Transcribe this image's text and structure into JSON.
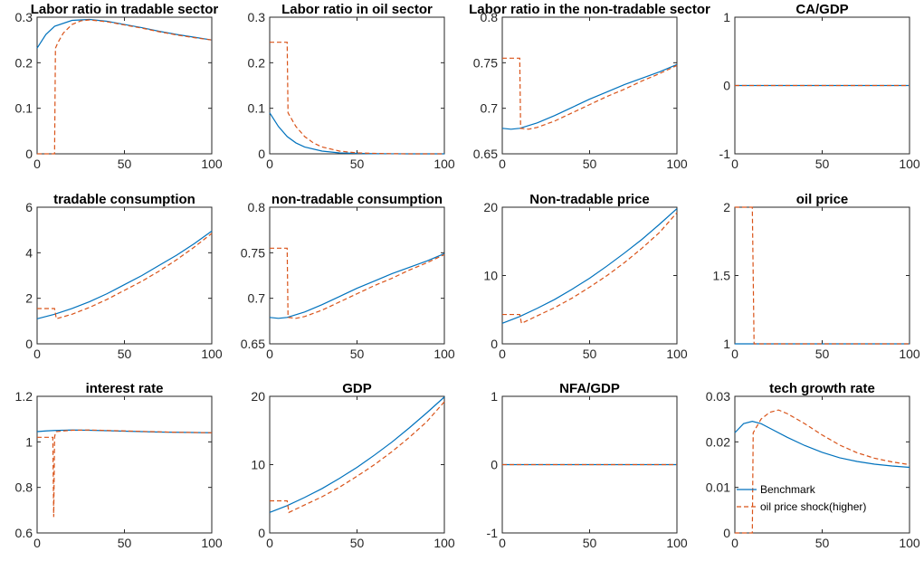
{
  "colors": {
    "benchmark": "#0072BD",
    "shock": "#D95319",
    "axis": "#262626"
  },
  "legend": {
    "location": "inside-panel-12-lower-left",
    "entries": [
      "Benchmark",
      "oil price shock(higher)"
    ]
  },
  "chart_data": [
    {
      "type": "line",
      "title": "Labor ratio in tradable sector",
      "xlim": [
        0,
        100
      ],
      "ylim": [
        0,
        0.3
      ],
      "xticks": [
        "0",
        "50",
        "100"
      ],
      "yticks": [
        "0",
        "0.1",
        "0.2",
        "0.3"
      ],
      "series": [
        {
          "name": "Benchmark",
          "x": [
            0,
            5,
            10,
            20,
            30,
            40,
            50,
            60,
            70,
            80,
            90,
            100
          ],
          "values": [
            0.232,
            0.262,
            0.28,
            0.293,
            0.295,
            0.291,
            0.284,
            0.277,
            0.269,
            0.262,
            0.256,
            0.25
          ]
        },
        {
          "name": "oil price shock(higher)",
          "x": [
            0,
            10,
            10.5,
            12,
            15,
            20,
            25,
            30,
            40,
            50,
            60,
            70,
            80,
            90,
            100
          ],
          "values": [
            0,
            0,
            0.232,
            0.245,
            0.265,
            0.284,
            0.292,
            0.294,
            0.29,
            0.283,
            0.276,
            0.268,
            0.261,
            0.255,
            0.25
          ]
        }
      ]
    },
    {
      "type": "line",
      "title": "Labor ratio in oil sector",
      "xlim": [
        0,
        100
      ],
      "ylim": [
        0,
        0.3
      ],
      "xticks": [
        "0",
        "50",
        "100"
      ],
      "yticks": [
        "0",
        "0.1",
        "0.2",
        "0.3"
      ],
      "series": [
        {
          "name": "Benchmark",
          "x": [
            0,
            5,
            10,
            15,
            20,
            30,
            40,
            50,
            60,
            70,
            80,
            90,
            100
          ],
          "values": [
            0.09,
            0.06,
            0.038,
            0.024,
            0.015,
            0.006,
            0.002,
            0.001,
            0.0003,
            0.0001,
            0,
            0,
            0
          ]
        },
        {
          "name": "oil price shock(higher)",
          "x": [
            0,
            10,
            10.5,
            15,
            20,
            25,
            30,
            40,
            50,
            60,
            70,
            80,
            90,
            100
          ],
          "values": [
            0.245,
            0.245,
            0.09,
            0.06,
            0.038,
            0.024,
            0.015,
            0.006,
            0.002,
            0.001,
            0.0003,
            0,
            0,
            0
          ]
        }
      ]
    },
    {
      "type": "line",
      "title": "Labor ratio in the non-tradable sector",
      "xlim": [
        0,
        100
      ],
      "ylim": [
        0.65,
        0.8
      ],
      "xticks": [
        "0",
        "50",
        "100"
      ],
      "yticks": [
        "0.65",
        "0.7",
        "0.75",
        "0.8"
      ],
      "series": [
        {
          "name": "Benchmark",
          "x": [
            0,
            5,
            10,
            20,
            30,
            40,
            50,
            60,
            70,
            80,
            90,
            100
          ],
          "values": [
            0.678,
            0.677,
            0.678,
            0.684,
            0.692,
            0.701,
            0.71,
            0.718,
            0.726,
            0.733,
            0.74,
            0.748
          ]
        },
        {
          "name": "oil price shock(higher)",
          "x": [
            0,
            10,
            10.5,
            15,
            20,
            30,
            40,
            50,
            60,
            70,
            80,
            90,
            100
          ],
          "values": [
            0.755,
            0.755,
            0.678,
            0.677,
            0.679,
            0.686,
            0.695,
            0.704,
            0.713,
            0.721,
            0.73,
            0.738,
            0.747
          ]
        }
      ]
    },
    {
      "type": "line",
      "title": "CA/GDP",
      "xlim": [
        0,
        100
      ],
      "ylim": [
        -1,
        1
      ],
      "xticks": [
        "0",
        "50",
        "100"
      ],
      "yticks": [
        "-1",
        "0",
        "1"
      ],
      "series": [
        {
          "name": "Benchmark",
          "x": [
            0,
            100
          ],
          "values": [
            0,
            0
          ]
        },
        {
          "name": "oil price shock(higher)",
          "x": [
            0,
            100
          ],
          "values": [
            0,
            0
          ]
        }
      ]
    },
    {
      "type": "line",
      "title": "tradable consumption",
      "xlim": [
        0,
        100
      ],
      "ylim": [
        0,
        6
      ],
      "xticks": [
        "0",
        "50",
        "100"
      ],
      "yticks": [
        "0",
        "2",
        "4",
        "6"
      ],
      "series": [
        {
          "name": "Benchmark",
          "x": [
            0,
            10,
            20,
            30,
            40,
            50,
            60,
            70,
            80,
            90,
            100
          ],
          "values": [
            1.1,
            1.3,
            1.55,
            1.85,
            2.2,
            2.6,
            3.0,
            3.45,
            3.9,
            4.4,
            4.95
          ]
        },
        {
          "name": "oil price shock(higher)",
          "x": [
            0,
            10,
            11,
            20,
            30,
            40,
            50,
            60,
            70,
            80,
            90,
            100
          ],
          "values": [
            1.55,
            1.55,
            1.1,
            1.3,
            1.6,
            1.95,
            2.35,
            2.75,
            3.2,
            3.7,
            4.25,
            4.85
          ]
        }
      ]
    },
    {
      "type": "line",
      "title": "non-tradable consumption",
      "xlim": [
        0,
        100
      ],
      "ylim": [
        0.65,
        0.8
      ],
      "xticks": [
        "0",
        "50",
        "100"
      ],
      "yticks": [
        "0.65",
        "0.7",
        "0.75",
        "0.8"
      ],
      "series": [
        {
          "name": "Benchmark",
          "x": [
            0,
            5,
            10,
            20,
            30,
            40,
            50,
            60,
            70,
            80,
            90,
            100
          ],
          "values": [
            0.679,
            0.678,
            0.679,
            0.685,
            0.693,
            0.702,
            0.711,
            0.719,
            0.727,
            0.734,
            0.741,
            0.749
          ]
        },
        {
          "name": "oil price shock(higher)",
          "x": [
            0,
            10,
            10.5,
            15,
            20,
            30,
            40,
            50,
            60,
            70,
            80,
            90,
            100
          ],
          "values": [
            0.755,
            0.755,
            0.679,
            0.678,
            0.68,
            0.687,
            0.696,
            0.705,
            0.714,
            0.722,
            0.731,
            0.739,
            0.748
          ]
        }
      ]
    },
    {
      "type": "line",
      "title": "Non-tradable price",
      "xlim": [
        0,
        100
      ],
      "ylim": [
        0,
        20
      ],
      "xticks": [
        "0",
        "50",
        "100"
      ],
      "yticks": [
        "0",
        "10",
        "20"
      ],
      "series": [
        {
          "name": "Benchmark",
          "x": [
            0,
            10,
            20,
            30,
            40,
            50,
            60,
            70,
            80,
            90,
            100
          ],
          "values": [
            3.0,
            4.0,
            5.2,
            6.5,
            8.0,
            9.6,
            11.4,
            13.3,
            15.3,
            17.5,
            19.8
          ]
        },
        {
          "name": "oil price shock(higher)",
          "x": [
            0,
            10,
            11,
            20,
            30,
            40,
            50,
            60,
            70,
            80,
            90,
            100
          ],
          "values": [
            4.3,
            4.3,
            3.0,
            4.1,
            5.3,
            6.7,
            8.3,
            10.0,
            11.9,
            14.0,
            16.3,
            19.2
          ]
        }
      ]
    },
    {
      "type": "line",
      "title": "oil price",
      "xlim": [
        0,
        100
      ],
      "ylim": [
        1,
        2
      ],
      "xticks": [
        "0",
        "50",
        "100"
      ],
      "yticks": [
        "1",
        "1.5",
        "2"
      ],
      "series": [
        {
          "name": "Benchmark",
          "x": [
            0,
            100
          ],
          "values": [
            1,
            1
          ]
        },
        {
          "name": "oil price shock(higher)",
          "x": [
            0,
            10,
            11,
            100
          ],
          "values": [
            2,
            2,
            1,
            1
          ]
        }
      ]
    },
    {
      "type": "line",
      "title": "interest rate",
      "xlim": [
        0,
        100
      ],
      "ylim": [
        0.6,
        1.2
      ],
      "xticks": [
        "0",
        "50",
        "100"
      ],
      "yticks": [
        "0.6",
        "0.8",
        "1",
        "1.2"
      ],
      "series": [
        {
          "name": "Benchmark",
          "x": [
            0,
            5,
            10,
            20,
            30,
            40,
            50,
            60,
            70,
            80,
            90,
            100
          ],
          "values": [
            1.045,
            1.048,
            1.05,
            1.052,
            1.051,
            1.049,
            1.047,
            1.045,
            1.043,
            1.042,
            1.041,
            1.04
          ]
        },
        {
          "name": "oil price shock(higher)",
          "x": [
            0,
            9,
            9.5,
            10,
            10.5,
            11,
            15,
            20,
            30,
            40,
            50,
            60,
            70,
            80,
            90,
            100
          ],
          "values": [
            1.02,
            1.02,
            0.67,
            1.02,
            1.04,
            1.045,
            1.048,
            1.051,
            1.052,
            1.05,
            1.048,
            1.046,
            1.044,
            1.042,
            1.041,
            1.04
          ]
        }
      ]
    },
    {
      "type": "line",
      "title": "GDP",
      "xlim": [
        0,
        100
      ],
      "ylim": [
        0,
        20
      ],
      "xticks": [
        "0",
        "50",
        "100"
      ],
      "yticks": [
        "0",
        "10",
        "20"
      ],
      "series": [
        {
          "name": "Benchmark",
          "x": [
            0,
            10,
            20,
            30,
            40,
            50,
            60,
            70,
            80,
            90,
            100
          ],
          "values": [
            3.0,
            4.0,
            5.2,
            6.5,
            8.0,
            9.6,
            11.4,
            13.3,
            15.4,
            17.6,
            19.9
          ]
        },
        {
          "name": "oil price shock(higher)",
          "x": [
            0,
            10,
            11,
            20,
            30,
            40,
            50,
            60,
            70,
            80,
            90,
            100
          ],
          "values": [
            4.7,
            4.7,
            3.0,
            4.1,
            5.3,
            6.7,
            8.3,
            10.0,
            11.9,
            14.0,
            16.3,
            19.2
          ]
        }
      ]
    },
    {
      "type": "line",
      "title": "NFA/GDP",
      "xlim": [
        0,
        100
      ],
      "ylim": [
        -1,
        1
      ],
      "xticks": [
        "0",
        "50",
        "100"
      ],
      "yticks": [
        "-1",
        "0",
        "1"
      ],
      "series": [
        {
          "name": "Benchmark",
          "x": [
            0,
            100
          ],
          "values": [
            0,
            0
          ]
        },
        {
          "name": "oil price shock(higher)",
          "x": [
            0,
            100
          ],
          "values": [
            0,
            0
          ]
        }
      ]
    },
    {
      "type": "line",
      "title": "tech growth rate",
      "xlim": [
        0,
        100
      ],
      "ylim": [
        0,
        0.03
      ],
      "xticks": [
        "0",
        "50",
        "100"
      ],
      "yticks": [
        "0",
        "0.01",
        "0.02",
        "0.03"
      ],
      "series": [
        {
          "name": "Benchmark",
          "x": [
            0,
            5,
            10,
            15,
            20,
            30,
            40,
            50,
            60,
            70,
            80,
            90,
            100
          ],
          "values": [
            0.022,
            0.024,
            0.0245,
            0.024,
            0.023,
            0.021,
            0.0192,
            0.0177,
            0.0165,
            0.0157,
            0.0151,
            0.0147,
            0.0144
          ]
        },
        {
          "name": "oil price shock(higher)",
          "x": [
            0,
            10,
            10.5,
            15,
            20,
            25,
            30,
            40,
            50,
            60,
            70,
            80,
            90,
            100
          ],
          "values": [
            0,
            0,
            0.022,
            0.025,
            0.0265,
            0.027,
            0.0262,
            0.024,
            0.0215,
            0.0193,
            0.0176,
            0.0164,
            0.0156,
            0.015
          ]
        }
      ]
    }
  ]
}
